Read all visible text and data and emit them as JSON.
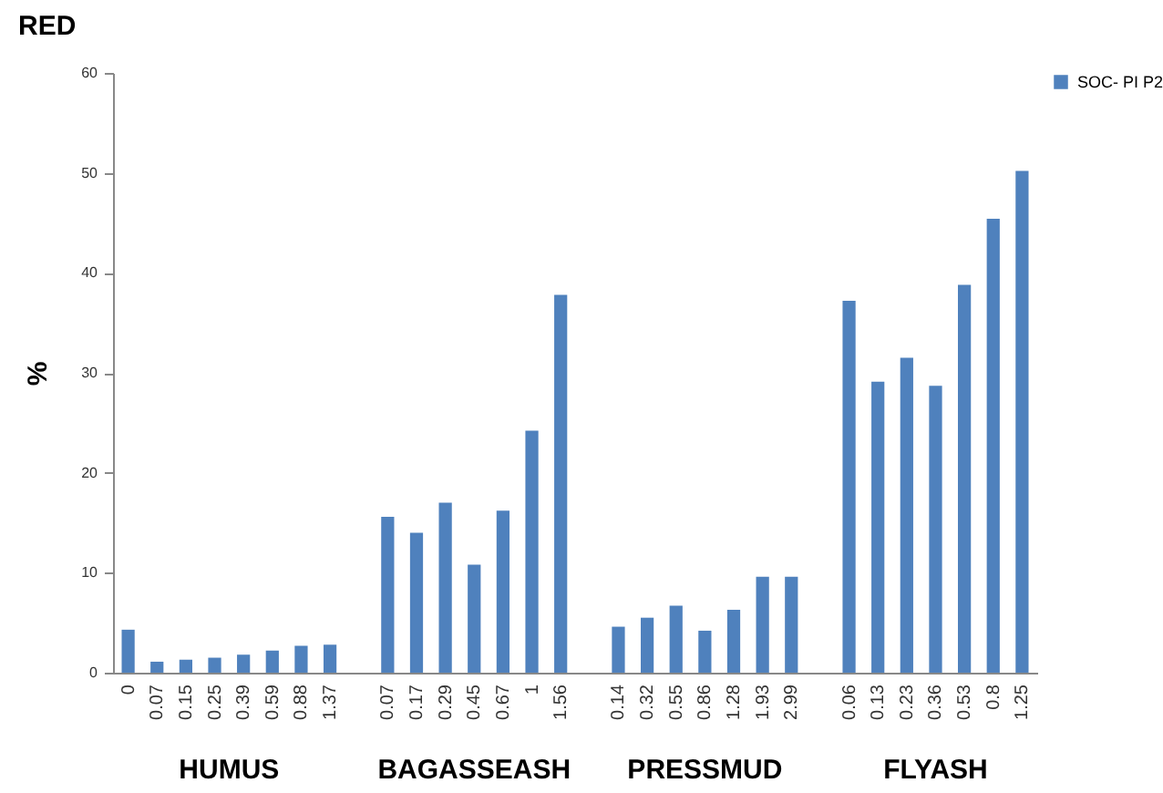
{
  "chart_data": {
    "type": "bar",
    "title": "RED",
    "ylabel": "%",
    "categories": [
      "0",
      "0.07",
      "0.15",
      "0.25",
      "0.39",
      "0.59",
      "0.88",
      "1.37",
      null,
      "0.07",
      "0.17",
      "0.29",
      "0.45",
      "0.67",
      "1",
      "1.56",
      null,
      "0.14",
      "0.32",
      "0.55",
      "0.86",
      "1.28",
      "1.93",
      "2.99",
      null,
      "0.06",
      "0.13",
      "0.23",
      "0.36",
      "0.53",
      "0.8",
      "1.25"
    ],
    "series": [
      {
        "name": "SOC- PI P2",
        "color": "#4f81bd",
        "values": [
          4.3,
          1.1,
          1.3,
          1.5,
          1.8,
          2.2,
          2.7,
          2.8,
          null,
          15.6,
          14.0,
          17.0,
          10.8,
          16.2,
          24.2,
          37.8,
          null,
          4.6,
          5.5,
          6.7,
          4.2,
          6.3,
          9.6,
          9.6,
          null,
          37.2,
          29.1,
          31.5,
          28.7,
          38.8,
          45.4,
          50.2
        ]
      }
    ],
    "annotations": [
      "HUMUS",
      "BAGASSEASH",
      "PRESSMUD",
      "FLYASH"
    ],
    "ylim": [
      0,
      60
    ],
    "yticks": [
      0,
      10,
      20,
      30,
      40,
      50,
      60
    ],
    "grid": false,
    "legend": "right"
  }
}
